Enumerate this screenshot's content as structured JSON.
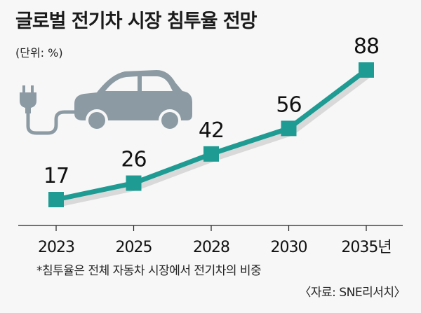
{
  "title": "글로벌 전기차 시장 침투율 전망",
  "unit_label": "(단위: %)",
  "footnote": "*침투율은 전체 자동차 시장에서 전기차의 비중",
  "source": "〈자료: SNE리서치〉",
  "icon": "electric-car-plug-icon",
  "colors": {
    "line": "#1e9b93",
    "marker": "#1e9b93",
    "background": "#f7f7f7",
    "car": "#8c9aa3"
  },
  "chart_data": {
    "type": "line",
    "title": "글로벌 전기차 시장 침투율 전망",
    "categories": [
      "2023",
      "2025",
      "2028",
      "2030",
      "2035년"
    ],
    "series": [
      {
        "values": [
          17,
          26,
          42,
          56,
          88
        ]
      }
    ],
    "data_labels": [
      "17",
      "26",
      "42",
      "56",
      "88"
    ],
    "ylabel": "",
    "xlabel": "",
    "grid": false,
    "legend": "none"
  }
}
